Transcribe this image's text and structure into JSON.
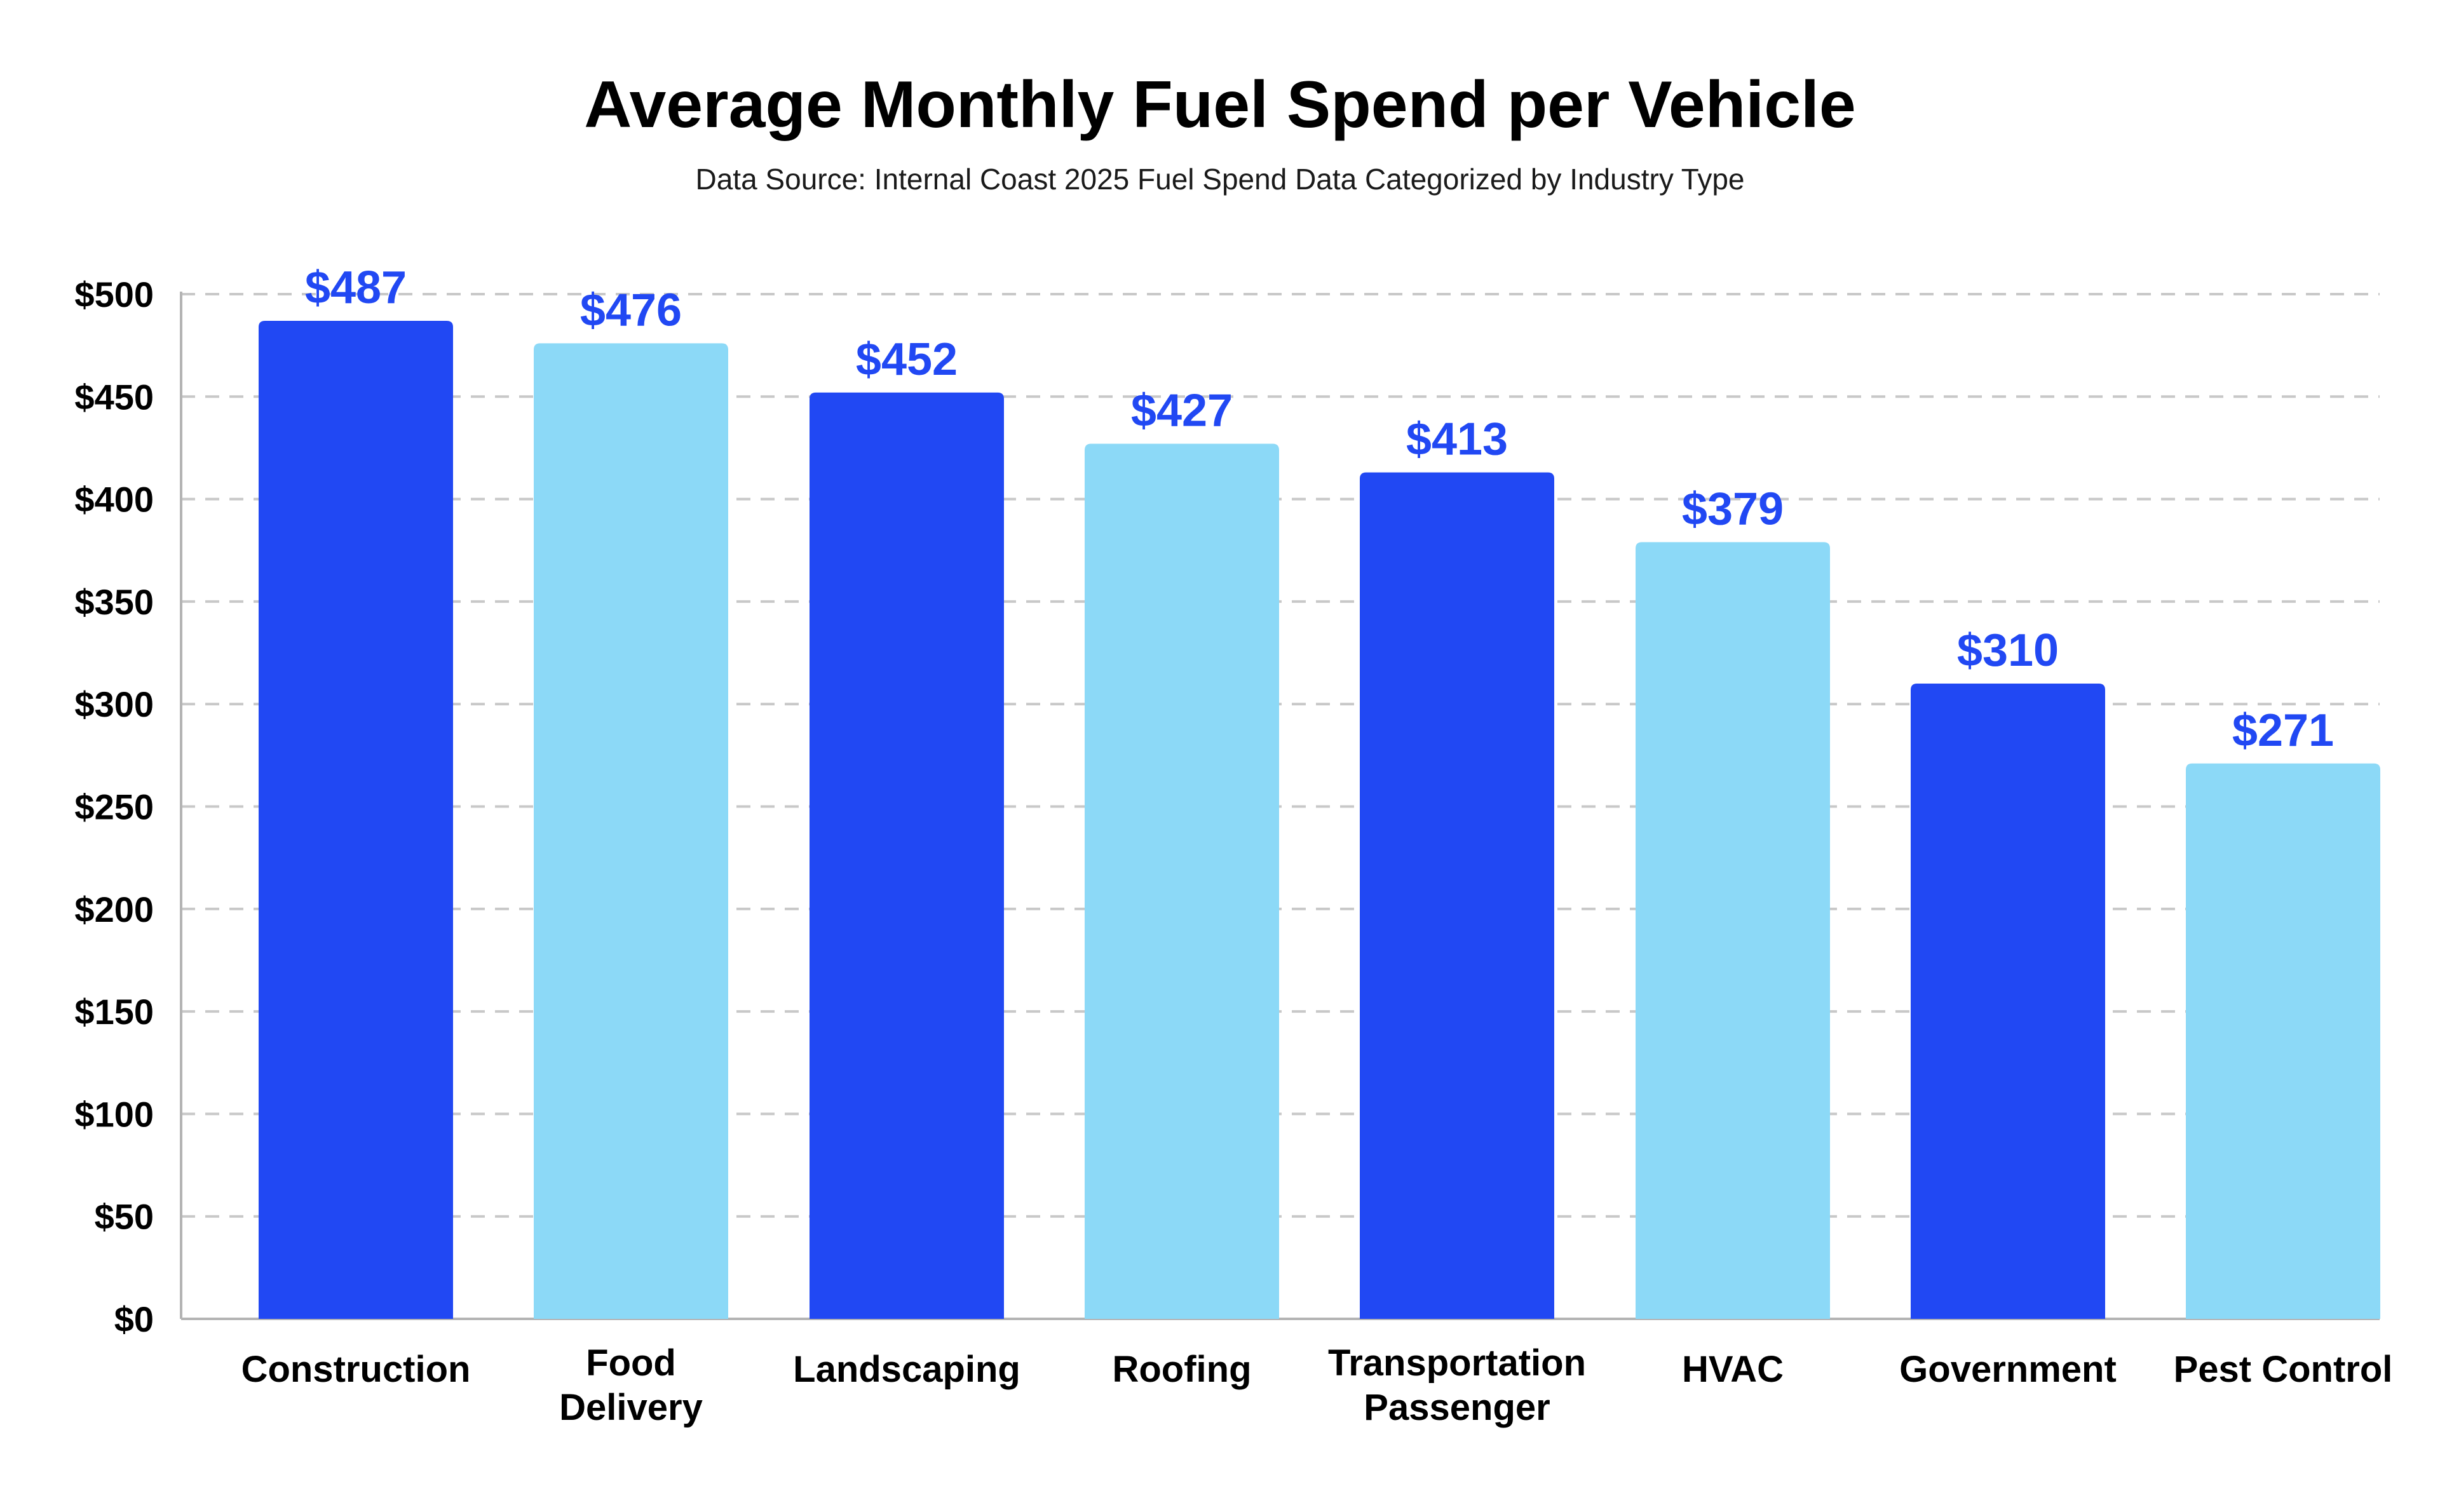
{
  "chart_data": {
    "type": "bar",
    "title": "Average Monthly Fuel Spend per Vehicle",
    "subtitle": "Data Source: Internal Coast 2025 Fuel Spend Data Categorized by Industry Type",
    "xlabel": "",
    "ylabel": "",
    "categories": [
      [
        "Construction"
      ],
      [
        "Food",
        "Delivery"
      ],
      [
        "Landscaping"
      ],
      [
        "Roofing"
      ],
      [
        "Transportation",
        "Passenger"
      ],
      [
        "HVAC"
      ],
      [
        "Government"
      ],
      [
        "Pest Control"
      ]
    ],
    "values": [
      487,
      476,
      452,
      427,
      413,
      379,
      310,
      271
    ],
    "data_labels": [
      "$487",
      "$476",
      "$452",
      "$427",
      "$413",
      "$379",
      "$310",
      "$271"
    ],
    "ylim": [
      0,
      500
    ],
    "yticks": [
      0,
      50,
      100,
      150,
      200,
      250,
      300,
      350,
      400,
      450,
      500
    ],
    "ytick_labels": [
      "$0",
      "$50",
      "$100",
      "$150",
      "$200",
      "$250",
      "$300",
      "$350",
      "$400",
      "$450",
      "$500"
    ],
    "grid": true,
    "grid_style": "dashed",
    "legend": "none",
    "bar_colors": [
      "#2148f3",
      "#8cd9f7",
      "#2148f3",
      "#8cd9f7",
      "#2148f3",
      "#8cd9f7",
      "#2148f3",
      "#8cd9f7"
    ],
    "label_color": "#2148f3"
  }
}
